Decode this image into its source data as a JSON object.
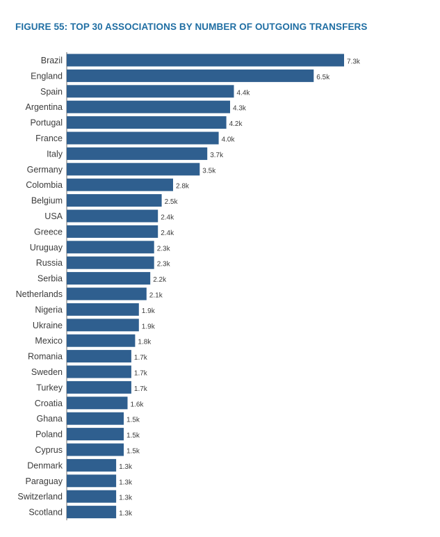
{
  "figure": {
    "title": "FIGURE 55: TOP 30 ASSOCIATIONS BY NUMBER OF OUTGOING TRANSFERS"
  },
  "colors": {
    "title": "#1f6ea3",
    "bar": "#2f5f8f",
    "text": "#3b3b3b"
  },
  "chart_data": {
    "type": "bar",
    "orientation": "horizontal",
    "title": "FIGURE 55: TOP 30 ASSOCIATIONS BY NUMBER OF OUTGOING TRANSFERS",
    "xlabel": "",
    "ylabel": "",
    "grid": false,
    "legend": "none",
    "categories": [
      "Brazil",
      "England",
      "Spain",
      "Argentina",
      "Portugal",
      "France",
      "Italy",
      "Germany",
      "Colombia",
      "Belgium",
      "USA",
      "Greece",
      "Uruguay",
      "Russia",
      "Serbia",
      "Netherlands",
      "Nigeria",
      "Ukraine",
      "Mexico",
      "Romania",
      "Sweden",
      "Turkey",
      "Croatia",
      "Ghana",
      "Poland",
      "Cyprus",
      "Denmark",
      "Paraguay",
      "Switzerland",
      "Scotland"
    ],
    "values": [
      7300,
      6500,
      4400,
      4300,
      4200,
      4000,
      3700,
      3500,
      2800,
      2500,
      2400,
      2400,
      2300,
      2300,
      2200,
      2100,
      1900,
      1900,
      1800,
      1700,
      1700,
      1700,
      1600,
      1500,
      1500,
      1500,
      1300,
      1300,
      1300,
      1300
    ],
    "data_labels": [
      "7.3k",
      "6.5k",
      "4.4k",
      "4.3k",
      "4.2k",
      "4.0k",
      "3.7k",
      "3.5k",
      "2.8k",
      "2.5k",
      "2.4k",
      "2.4k",
      "2.3k",
      "2.3k",
      "2.2k",
      "2.1k",
      "1.9k",
      "1.9k",
      "1.8k",
      "1.7k",
      "1.7k",
      "1.7k",
      "1.6k",
      "1.5k",
      "1.5k",
      "1.5k",
      "1.3k",
      "1.3k",
      "1.3k",
      "1.3k"
    ],
    "xlim": [
      0,
      7300
    ]
  }
}
